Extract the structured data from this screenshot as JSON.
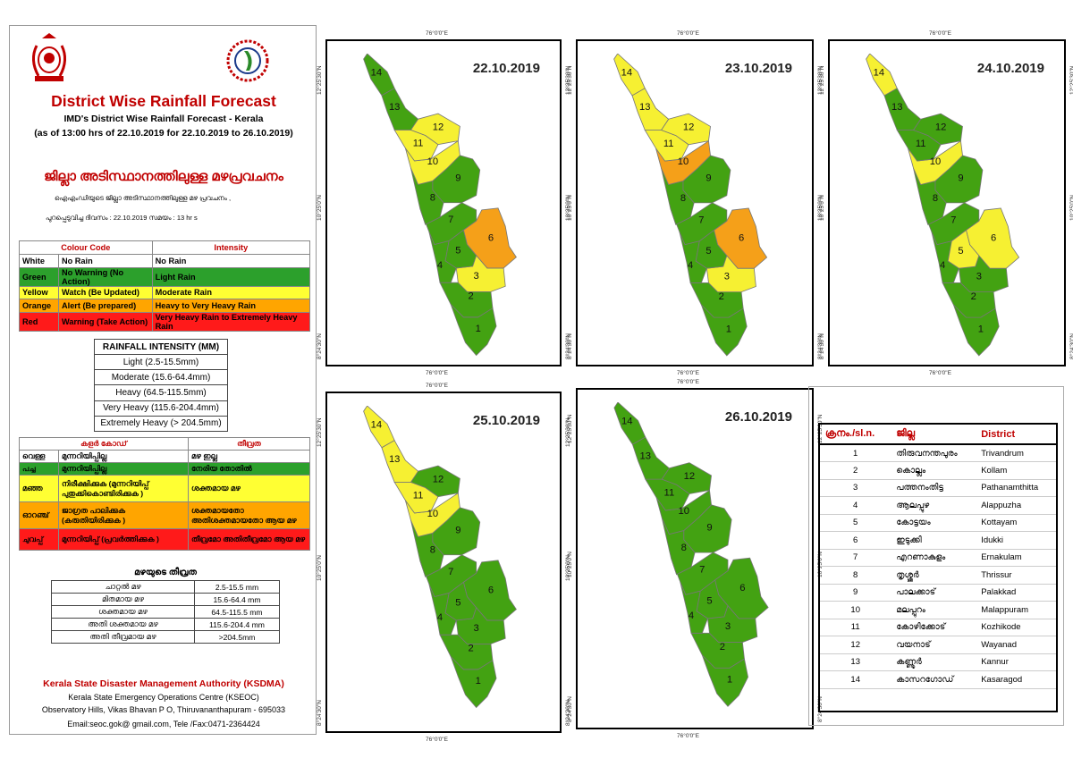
{
  "header": {
    "title": "District Wise Rainfall Forecast",
    "subtitle": "IMD's District Wise Rainfall Forecast - Kerala",
    "period": "(as of 13:00 hrs of 22.10.2019  for 22.10.2019 to 26.10.2019)",
    "ml_title": "ജില്ലാ അടിസ്ഥാനത്തിലുള്ള മഴപ്രവചനം",
    "ml_line1": "ഐഎംഡിയുടെ ജില്ലാ അടിസ്ഥാനത്തിലുള്ള മഴ പ്രവചനം ,",
    "ml_line2": "പുറപ്പെടുവിച്ച ദിവസം : 22.10.2019   സമയം : 13 hr s"
  },
  "colour_code": {
    "head_code": "Colour Code",
    "head_intensity": "Intensity",
    "rows": [
      {
        "name": "White",
        "action": "No Rain",
        "intensity": "No Rain",
        "color": "#ffffff"
      },
      {
        "name": "Green",
        "action": "No Warning (No Action)",
        "intensity": "Light Rain",
        "color": "#2ca02c"
      },
      {
        "name": "Yellow",
        "action": "Watch (Be Updated)",
        "intensity": "Moderate Rain",
        "color": "#ffff33"
      },
      {
        "name": "Orange",
        "action": "Alert (Be prepared)",
        "intensity": "Heavy to Very Heavy Rain",
        "color": "#ffa500"
      },
      {
        "name": "Red",
        "action": "Warning (Take Action)",
        "intensity": "Very Heavy Rain to Extremely Heavy Rain",
        "color": "#ff1a1a"
      }
    ]
  },
  "rainfall_intensity": {
    "title": "RAINFALL INTENSITY (MM)",
    "rows": [
      "Light (2.5-15.5mm)",
      "Moderate (15.6-64.4mm)",
      "Heavy (64.5-115.5mm)",
      "Very Heavy (115.6-204.4mm)",
      "Extremely Heavy (> 204.5mm)"
    ]
  },
  "ml_colour_code": {
    "head_code": "കളർ കോഡ്",
    "head_intensity": "തീവ്രത",
    "rows": [
      {
        "name": "വെള്ള",
        "action": "മുന്നറിയിപ്പില്ല",
        "intensity": "മഴ ഇല്ല"
      },
      {
        "name": "പച്ച",
        "action": "മുന്നറിയിപ്പില്ല",
        "intensity": "നേരിയ തോതിൽ"
      },
      {
        "name": "മഞ്ഞ",
        "action": "നിരീക്ഷിക്കുക (മുന്നറിയിപ്പ് പുതുക്കികൊണ്ടിരിക്കുക )",
        "intensity": "ശക്തമായ മഴ"
      },
      {
        "name": "ഓറഞ്ച്",
        "action": "ജാഗ്രത പാലിക്കുക (കരുതിയിരിക്കുക )",
        "intensity": "ശക്തമായതോ അതിശക്തമായതോ ആയ മഴ"
      },
      {
        "name": "ചുവപ്പ്",
        "action": "മുന്നറിയിപ്പ് (പ്രവർത്തിക്കുക )",
        "intensity": "തീവ്രമോ അതിതീവ്രമോ ആയ മഴ"
      }
    ]
  },
  "ml_intensity": {
    "title": "മഴയുടെ തീവ്രത",
    "rows": [
      {
        "label": "ചാറ്റൽ മഴ",
        "range": "2.5-15.5 mm"
      },
      {
        "label": "മിതമായ മഴ",
        "range": "15.6-64.4 mm"
      },
      {
        "label": "ശക്തമായ മഴ",
        "range": "64.5-115.5 mm"
      },
      {
        "label": "അതി ശക്തമായ മഴ",
        "range": "115.6-204.4 mm"
      },
      {
        "label": "അതി തീവ്രമായ മഴ",
        "range": ">204.5mm"
      }
    ]
  },
  "footer": {
    "org": "Kerala State Disaster Management Authority (KSDMA)",
    "centre": "Kerala State Emergency Operations Centre (KSEOC)",
    "address": "Observatory Hills, Vikas Bhavan P O, Thiruvananthapuram - 695033",
    "contact": "Email:seoc.gok@ gmail.com, Tele /Fax:0471-2364424"
  },
  "map_labels": {
    "lon": "76°0'0\"E",
    "lat_n": "12°25'30\"N",
    "lat_m": "10°25'0\"N",
    "lat_s": "8°24'30\"N"
  },
  "maps": [
    {
      "date": "22.10.2019",
      "colors": {
        "1": "green",
        "2": "green",
        "3": "yellow",
        "4": "green",
        "5": "green",
        "6": "orange",
        "7": "green",
        "8": "green",
        "9": "green",
        "10": "yellow",
        "11": "yellow",
        "12": "yellow",
        "13": "green",
        "14": "green"
      }
    },
    {
      "date": "23.10.2019",
      "colors": {
        "1": "green",
        "2": "green",
        "3": "yellow",
        "4": "green",
        "5": "green",
        "6": "orange",
        "7": "green",
        "8": "green",
        "9": "green",
        "10": "orange",
        "11": "yellow",
        "12": "yellow",
        "13": "yellow",
        "14": "yellow"
      }
    },
    {
      "date": "24.10.2019",
      "colors": {
        "1": "green",
        "2": "green",
        "3": "green",
        "4": "green",
        "5": "yellow",
        "6": "yellow",
        "7": "green",
        "8": "green",
        "9": "green",
        "10": "yellow",
        "11": "green",
        "12": "green",
        "13": "green",
        "14": "yellow"
      }
    },
    {
      "date": "25.10.2019",
      "colors": {
        "1": "green",
        "2": "green",
        "3": "green",
        "4": "green",
        "5": "green",
        "6": "green",
        "7": "green",
        "8": "green",
        "9": "green",
        "10": "yellow",
        "11": "yellow",
        "12": "green",
        "13": "yellow",
        "14": "yellow"
      }
    },
    {
      "date": "26.10.2019",
      "colors": {
        "1": "green",
        "2": "green",
        "3": "green",
        "4": "green",
        "5": "green",
        "6": "green",
        "7": "green",
        "8": "green",
        "9": "green",
        "10": "green",
        "11": "green",
        "12": "green",
        "13": "green",
        "14": "green"
      }
    }
  ],
  "palette": {
    "green": "#43a212",
    "yellow": "#f6f032",
    "orange": "#f5a019"
  },
  "districts": {
    "head_no": "ക്രനം./sl.n.",
    "head_ml": "ജില്ല",
    "head_en": "District",
    "rows": [
      {
        "no": "1",
        "ml": "തിരുവനന്തപുരം",
        "en": "Trivandrum"
      },
      {
        "no": "2",
        "ml": "കൊല്ലം",
        "en": "Kollam"
      },
      {
        "no": "3",
        "ml": "പത്തനംതിട്ട",
        "en": "Pathanamthitta"
      },
      {
        "no": "4",
        "ml": "ആലപ്പുഴ",
        "en": "Alappuzha"
      },
      {
        "no": "5",
        "ml": "കോട്ടയം",
        "en": "Kottayam"
      },
      {
        "no": "6",
        "ml": "ഇടുക്കി",
        "en": "Idukki"
      },
      {
        "no": "7",
        "ml": "എറണാകുളം",
        "en": "Ernakulam"
      },
      {
        "no": "8",
        "ml": "തൃശ്ശൂർ",
        "en": "Thrissur"
      },
      {
        "no": "9",
        "ml": "പാലക്കാട്",
        "en": "Palakkad"
      },
      {
        "no": "10",
        "ml": "മലപ്പുറം",
        "en": "Malappuram"
      },
      {
        "no": "11",
        "ml": "കോഴിക്കോട്",
        "en": "Kozhikode"
      },
      {
        "no": "12",
        "ml": "വയനാട്",
        "en": "Wayanad"
      },
      {
        "no": "13",
        "ml": "കണ്ണൂർ",
        "en": "Kannur"
      },
      {
        "no": "14",
        "ml": "കാസറഗോഡ്",
        "en": "Kasaragod"
      }
    ]
  }
}
